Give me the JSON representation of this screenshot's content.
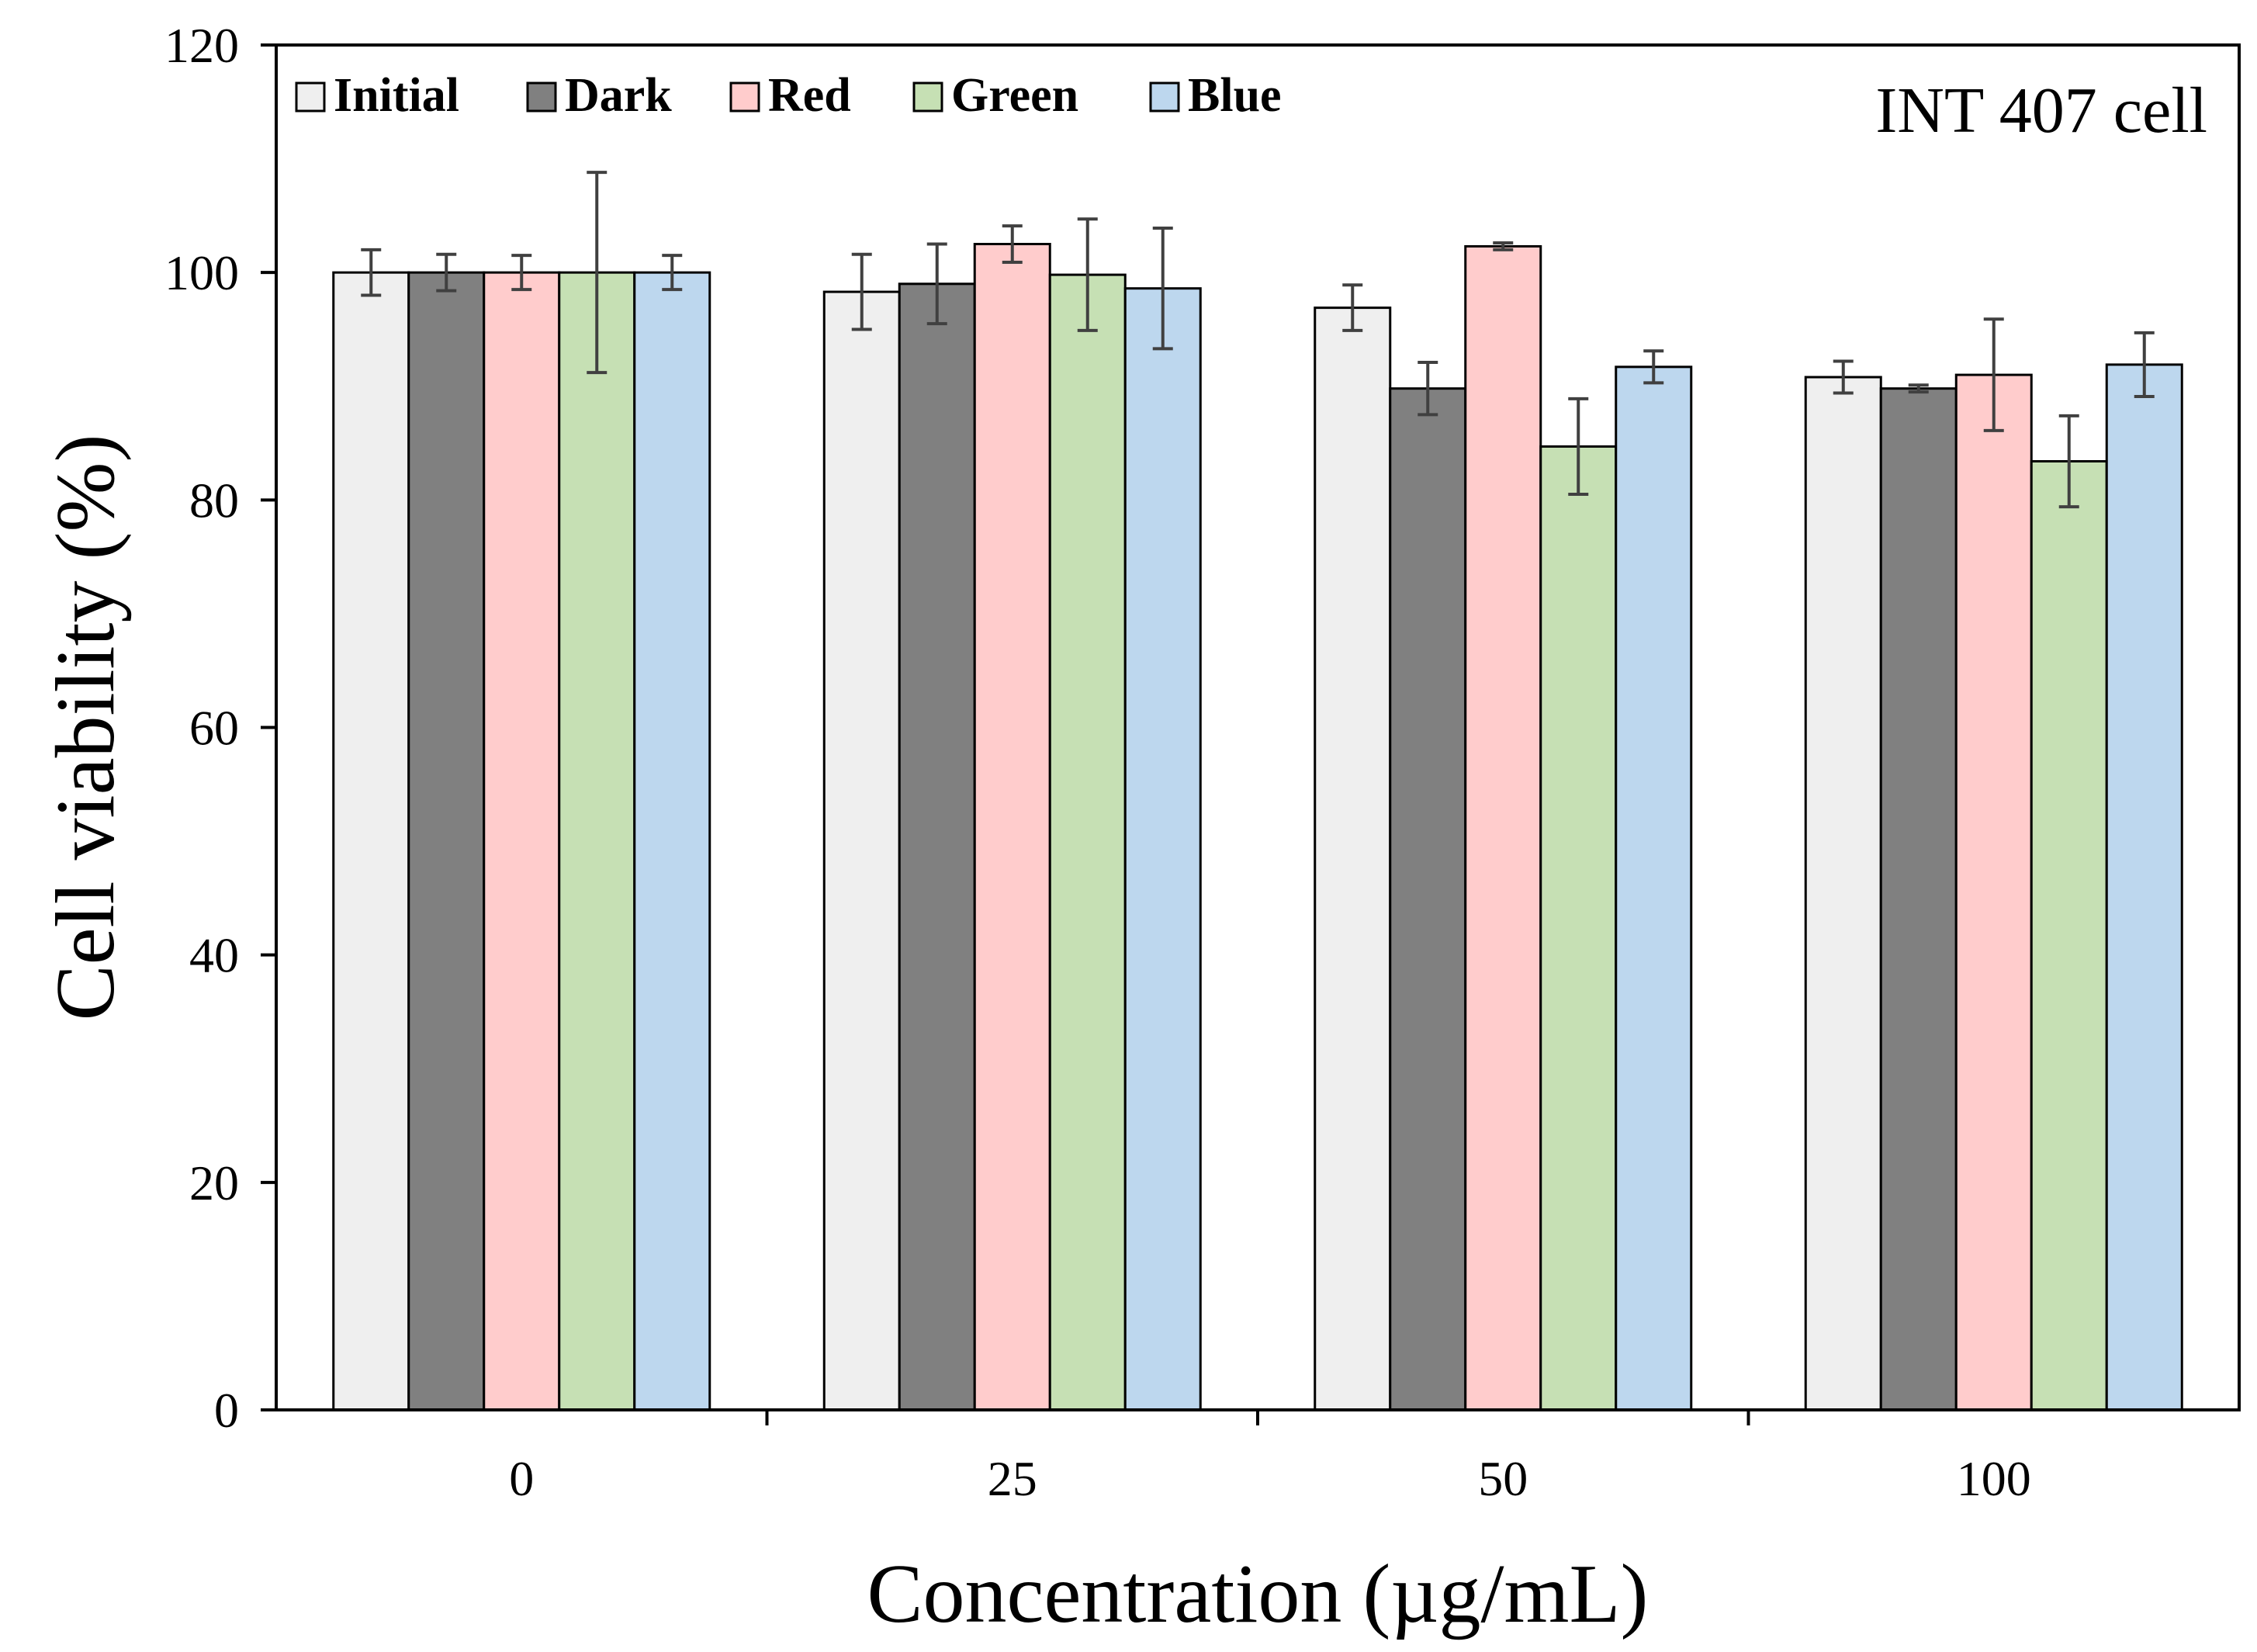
{
  "chart_data": {
    "type": "bar",
    "title": "",
    "annotation": "INT 407 cell",
    "xlabel": "Concentration (µg/mL)",
    "ylabel": "Cell viability (%)",
    "ylim": [
      0,
      120
    ],
    "yticks": [
      0,
      20,
      40,
      60,
      80,
      100,
      120
    ],
    "categories": [
      "0",
      "25",
      "50",
      "100"
    ],
    "legend_position": "top-left",
    "grid": false,
    "series": [
      {
        "name": "Initial",
        "color": "#efefef",
        "values": [
          100,
          98.3,
          96.9,
          90.8
        ],
        "errors": [
          2.0,
          3.3,
          2.0,
          1.4
        ]
      },
      {
        "name": "Dark",
        "color": "#808080",
        "values": [
          100,
          99.0,
          89.8,
          89.8
        ],
        "errors": [
          1.6,
          3.5,
          2.3,
          0.3
        ]
      },
      {
        "name": "Red",
        "color": "#ffcccc",
        "values": [
          100,
          102.5,
          102.3,
          91.0
        ],
        "errors": [
          1.5,
          1.6,
          0.3,
          4.9
        ]
      },
      {
        "name": "Green",
        "color": "#c6e0b4",
        "values": [
          100,
          99.8,
          84.7,
          83.4
        ],
        "errors": [
          8.8,
          4.9,
          4.2,
          4.0
        ]
      },
      {
        "name": "Blue",
        "color": "#bdd7ee",
        "values": [
          100,
          98.6,
          91.7,
          91.9
        ],
        "errors": [
          1.5,
          5.3,
          1.4,
          2.8
        ]
      }
    ]
  }
}
